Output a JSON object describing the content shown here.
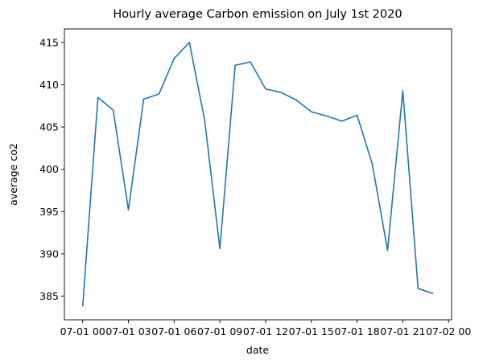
{
  "chart_data": {
    "type": "line",
    "title": "Hourly average Carbon emission on July 1st 2020",
    "xlabel": "date",
    "ylabel": "average co2",
    "x": [
      "2020-07-01 00:00",
      "2020-07-01 01:00",
      "2020-07-01 02:00",
      "2020-07-01 03:00",
      "2020-07-01 04:00",
      "2020-07-01 05:00",
      "2020-07-01 06:00",
      "2020-07-01 07:00",
      "2020-07-01 08:00",
      "2020-07-01 09:00",
      "2020-07-01 10:00",
      "2020-07-01 11:00",
      "2020-07-01 12:00",
      "2020-07-01 13:00",
      "2020-07-01 14:00",
      "2020-07-01 15:00",
      "2020-07-01 16:00",
      "2020-07-01 17:00",
      "2020-07-01 18:00",
      "2020-07-01 19:00",
      "2020-07-01 20:00",
      "2020-07-01 21:00",
      "2020-07-01 22:00",
      "2020-07-01 23:00"
    ],
    "series": [
      {
        "color": "#1f77b4",
        "values": [
          383.8,
          408.5,
          407.0,
          395.2,
          408.3,
          408.9,
          413.1,
          415.0,
          405.8,
          390.6,
          412.3,
          412.7,
          409.5,
          409.1,
          408.2,
          406.8,
          406.3,
          405.7,
          406.4,
          400.6,
          390.4,
          409.3,
          385.9,
          385.3
        ]
      }
    ],
    "xticks": [
      {
        "x": "2020-07-01 00:00",
        "label": "07-01 00"
      },
      {
        "x": "2020-07-01 03:00",
        "label": "07-01 03"
      },
      {
        "x": "2020-07-01 06:00",
        "label": "07-01 06"
      },
      {
        "x": "2020-07-01 09:00",
        "label": "07-01 09"
      },
      {
        "x": "2020-07-01 12:00",
        "label": "07-01 12"
      },
      {
        "x": "2020-07-01 15:00",
        "label": "07-01 15"
      },
      {
        "x": "2020-07-01 18:00",
        "label": "07-01 18"
      },
      {
        "x": "2020-07-01 21:00",
        "label": "07-01 21"
      },
      {
        "x": "2020-07-02 00:00",
        "label": "07-02 00"
      }
    ],
    "yticks": [
      385,
      390,
      395,
      400,
      405,
      410,
      415
    ],
    "xlim": [
      "2020-06-30 22:48",
      "2020-07-02 00:12"
    ],
    "ylim": [
      382.2,
      416.6
    ],
    "grid": false,
    "legend": false
  }
}
